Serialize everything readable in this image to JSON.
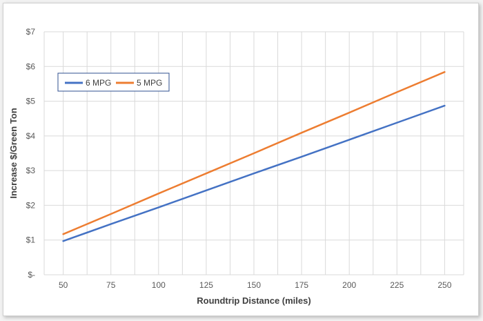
{
  "chart_data": {
    "type": "line",
    "title": "",
    "xlabel": "Roundtrip Distance (miles)",
    "ylabel": "Increase $/Green Ton",
    "x": [
      50,
      75,
      100,
      125,
      150,
      175,
      200,
      225,
      250
    ],
    "x_tick_labels": [
      "50",
      "75",
      "100",
      "125",
      "150",
      "175",
      "200",
      "225",
      "250"
    ],
    "y_tick_labels": [
      "$-",
      "$1",
      "$2",
      "$3",
      "$4",
      "$5",
      "$6",
      "$7"
    ],
    "ylim": [
      0,
      7
    ],
    "grid": true,
    "legend_position": "top-left",
    "series": [
      {
        "name": "6 MPG",
        "color": "#4472C4",
        "values": [
          0.97,
          1.46,
          1.94,
          2.43,
          2.92,
          3.4,
          3.89,
          4.38,
          4.87
        ]
      },
      {
        "name": "5 MPG",
        "color": "#ED7D31",
        "values": [
          1.17,
          1.75,
          2.34,
          2.92,
          3.5,
          4.09,
          4.67,
          5.26,
          5.84
        ]
      }
    ]
  }
}
